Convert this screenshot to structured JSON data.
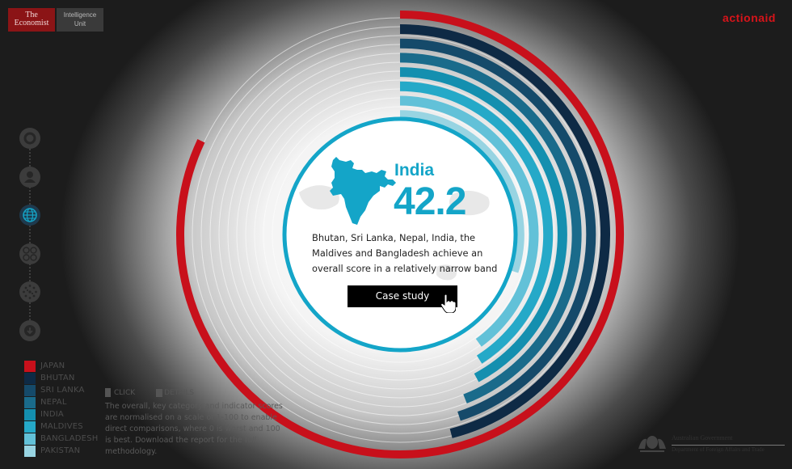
{
  "branding": {
    "economist_line1": "The",
    "economist_line2": "Economist",
    "eiu_line1": "Intelligence",
    "eiu_line2": "Unit",
    "actionaid": "actionaid"
  },
  "nav": {
    "items": [
      {
        "icon": "circle-icon"
      },
      {
        "icon": "person-icon"
      },
      {
        "icon": "globe-icon"
      },
      {
        "icon": "grid-circles-icon"
      },
      {
        "icon": "dots-circle-icon"
      },
      {
        "icon": "download-icon"
      }
    ],
    "active_index": 2
  },
  "legend": [
    {
      "label": "JAPAN",
      "color": "#c8101b"
    },
    {
      "label": "BHUTAN",
      "color": "#0e2a45"
    },
    {
      "label": "SRI LANKA",
      "color": "#154a6a"
    },
    {
      "label": "NEPAL",
      "color": "#1a6b8b"
    },
    {
      "label": "INDIA",
      "color": "#148faf"
    },
    {
      "label": "MALDIVES",
      "color": "#25a9c8"
    },
    {
      "label": "BANGLADESH",
      "color": "#62c1d8"
    },
    {
      "label": "PAKISTAN",
      "color": "#98d4e2"
    }
  ],
  "hint": {
    "click": "CLICK",
    "details": "DETAILS"
  },
  "note": "The overall, key category and indicator scores are normalised on a scale of 1-100 to enable direct comparisons, where 0 is worst and 100 is best. Download the report for the full methodology.",
  "selected": {
    "name": "India",
    "score": "42.2",
    "description": "Bhutan, Sri Lanka, Nepal, India, the Maldives and Bangladesh achieve an overall score in a relatively narrow band",
    "button": "Case study"
  },
  "gov": {
    "line1": "Australian Government",
    "line2": "Department of Foreign Affairs and Trade"
  },
  "chart_data": {
    "type": "radial-bar",
    "scale": [
      0,
      100
    ],
    "series": [
      {
        "name": "JAPAN",
        "value": 82,
        "color": "#c8101b"
      },
      {
        "name": "BHUTAN",
        "value": 46,
        "color": "#0e2a45"
      },
      {
        "name": "SRI LANKA",
        "value": 45,
        "color": "#154a6a"
      },
      {
        "name": "NEPAL",
        "value": 44,
        "color": "#1a6b8b"
      },
      {
        "name": "INDIA",
        "value": 42.2,
        "color": "#148faf"
      },
      {
        "name": "MALDIVES",
        "value": 41,
        "color": "#25a9c8"
      },
      {
        "name": "BANGLADESH",
        "value": 40,
        "color": "#62c1d8"
      },
      {
        "name": "PAKISTAN",
        "value": 30,
        "color": "#98d4e2"
      }
    ]
  },
  "colors": {
    "accent": "#14a5c8",
    "ring": "#14a5c8",
    "brand_red": "#d7141a"
  }
}
